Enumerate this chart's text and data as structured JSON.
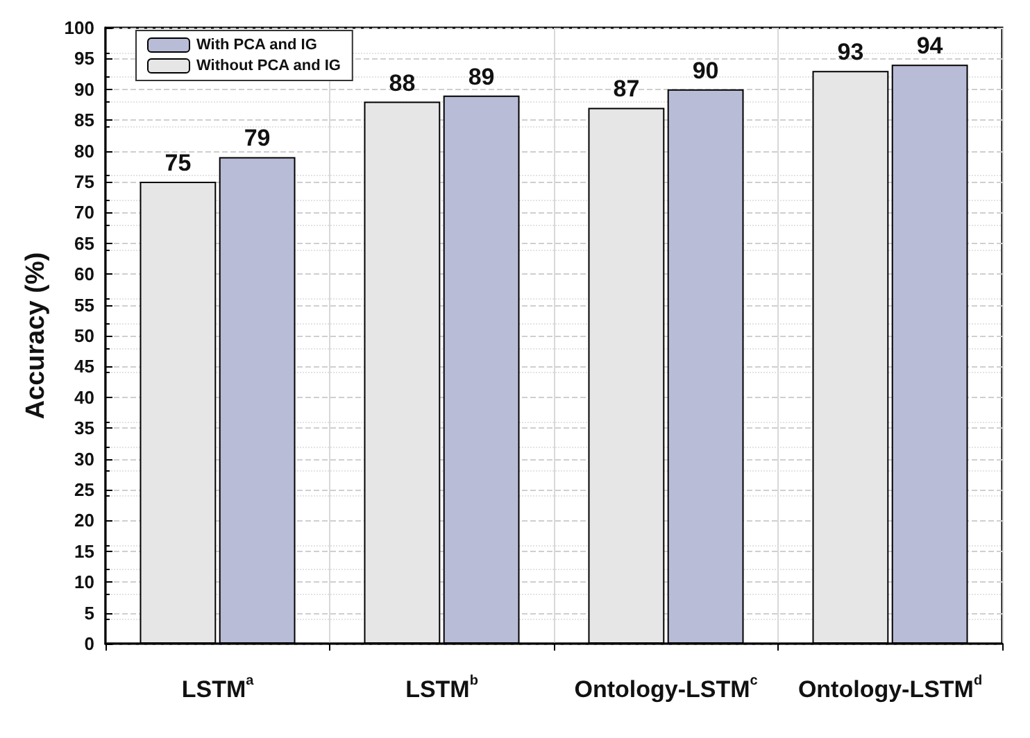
{
  "chart_data": {
    "type": "bar",
    "ylabel": "Accuracy (%)",
    "categories": [
      "LSTM$^{a}$",
      "LSTM$^{b}$",
      "Ontology-LSTM$^{c}$",
      "Ontology-LSTM$^{d}$"
    ],
    "series": [
      {
        "name": "Without PCA and IG",
        "color": "#e6e6e6",
        "values": [
          75,
          88,
          87,
          93
        ]
      },
      {
        "name": "With PCA and IG",
        "color": "#b9bcd6",
        "values": [
          79,
          89,
          90,
          94
        ]
      }
    ],
    "ylim": [
      0,
      100
    ],
    "yticks": [
      0,
      5,
      10,
      15,
      20,
      25,
      30,
      35,
      40,
      45,
      50,
      55,
      60,
      65,
      70,
      75,
      80,
      85,
      90,
      95,
      100
    ],
    "grid": true,
    "legend": "top left",
    "data_labels": true
  }
}
